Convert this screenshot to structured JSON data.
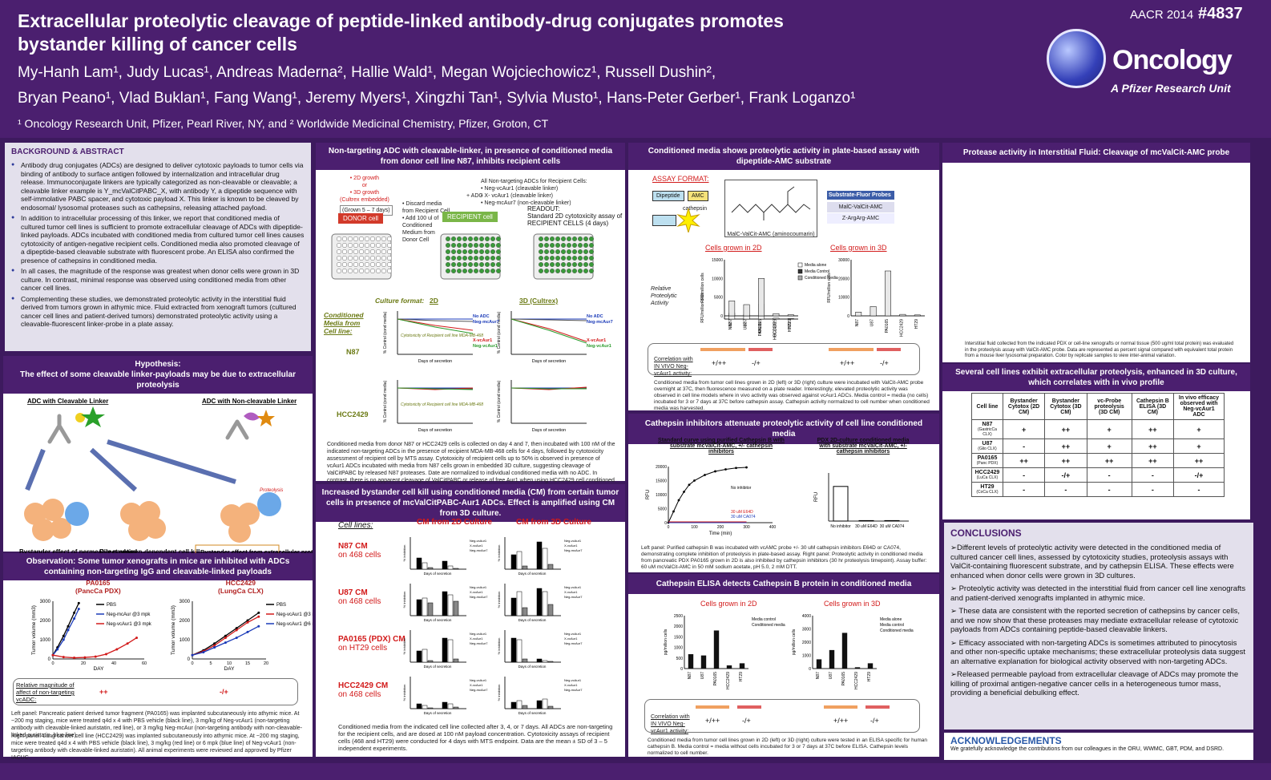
{
  "header": {
    "title_line1": "Extracellular proteolytic cleavage of peptide-linked antibody-drug conjugates promotes",
    "title_line2": "bystander killing of cancer cells",
    "authors_line1": "My-Hanh Lam¹, Judy Lucas¹, Andreas Maderna², Hallie Wald¹, Megan Wojciechowicz¹, Russell Dushin²,",
    "authors_line2": "Bryan Peano¹, Vlad Buklan¹, Fang Wang¹, Jeremy Myers¹, Xingzhi Tan¹, Sylvia Musto¹, Hans-Peter Gerber¹, Frank Loganzo¹",
    "affiliations": "¹ Oncology Research Unit,  Pfizer, Pearl River, NY, and  ² Worldwide Medicinal Chemistry, Pfizer, Groton, CT",
    "meeting": "AACR 2014",
    "poster_number": "#4837",
    "logo_text": "Oncology",
    "logo_sub": "A Pfizer Research Unit"
  },
  "background": {
    "heading": "BACKGROUND & ABSTRACT",
    "bullets": [
      "Antibody drug conjugates (ADCs) are designed to deliver cytotoxic payloads to tumor cells via binding of antibody to surface antigen followed by internalization and intracellular drug release. Immunoconjugate linkers are typically categorized as non-cleavable or cleavable; a cleavable linker example is Y_mcValCitPABC_X, with antibody Y, a dipeptide sequence with self-immolative PABC spacer, and cytotoxic payload X. This linker is known to be cleaved by endosomal/ lysosomal proteases such as cathepsins, releasing attached payload.",
      "In addition to intracellular processing of this linker, we report that conditioned media of cultured tumor cell lines is sufficient to promote extracellular cleavage of ADCs with dipeptide-linked payloads. ADCs incubated with conditioned media from cultured tumor cell lines causes cytotoxicity of antigen-negative recipient cells. Conditioned media also promoted cleavage of a dipeptide-based cleavable substrate with fluorescent probe. An ELISA also confirmed the presence of cathepsins in conditioned media.",
      "In all cases, the magnitude of the response was greatest when donor cells were grown in 3D culture. In contrast, minimal response was observed using conditioned media from other cancer cell lines.",
      "Complementing these studies, we demonstrated proteolytic activity in the interstitial fluid derived from tumors grown in athymic mice. Fluid extracted from xenograft tumors (cultured cancer cell lines and patient-derived tumors) demonstrated proteolytic activity using a cleavable-fluorescent linker-probe in a plate assay."
    ]
  },
  "hypothesis": {
    "heading": "Hypothesis:\nThe effect of some cleavable linker-payloads may be due to extracellular proteolysis",
    "left_label": "ADC with Cleavable Linker",
    "right_label": "ADC with Non-cleavable Linker",
    "proteolysis": "Proteolysis",
    "cap1": "Bystander effect of permeable payload",
    "cap2": "Direct antigen-dependent cell kill",
    "cap3": "Bystander effect from extracellular proteolysis"
  },
  "observation": {
    "heading": "Observation: Some tumor xenografts in mice are inhibited with ADCs containing non-targeting IgG and cleavable-linked payloads",
    "left_title": "PA0165",
    "left_sub": "(PancCa PDX)",
    "right_title": "HCC2429",
    "right_sub": "(LungCa CLX)",
    "ylabel": "Tumor volume (mm3)",
    "xlabel": "DAY",
    "legend_left": [
      "PBS",
      "Neg-mcAur @3 mpk",
      "Neg-vcAur1 @3 mpk"
    ],
    "legend_right": [
      "PBS",
      "Neg-vcAur1 @3 mpk",
      "Neg-vcAur1 @6 mpk"
    ],
    "mag_label": "Relative magnitude of affect of non-targeting vcADC:",
    "mag_left": "++",
    "mag_right": "-/+",
    "note1": "Left panel: Pancreatic patient derived tumor fragment (PA0165) was implanted subcutaneously into athymic mice. At ~200 mg staging, mice were treated q4d x 4 with PBS vehicle (black line), 3 mg/kg of Neg-vcAur1 (non-targeting antibody with cleavable-linked auristatin, red line), or 3 mg/kg Neg-mcAur (non-targeting antibody with non-cleavable-linked auristatin, blue line).",
    "note2": "Right panel: Lung cancer cell line (HCC2429) was implanted subcutaneously into athymic mice. At ~200 mg staging, mice were treated q4d x 4 with PBS vehicle (black line), 3 mg/kg (red line) or 6 mpk (blue line) of Neg-vcAur1 (non-targeting antibody with cleavable-linked auristatin). All animal experiments were reviewed and approved by Pfizer IACUC."
  },
  "nontargeting": {
    "heading": "Non-targeting ADC with cleavable-linker, in presence of conditioned media from donor cell line N87, inhibits recipient cells",
    "growth": "• 2D growth\nor\n• 3D growth\n(Cultrex embedded)",
    "grown": "(Grown 5 – 7 days)",
    "donor": "DONOR cell",
    "steps": "• Discard media from Recipient Cell\n• Add 100 ul of Conditioned Medium from Donor Cell",
    "recipient": "RECIPIENT cell",
    "adc": "+ ADC",
    "adc_list": "All Non-targeting ADCs for Recipient Cells:\n• Neg-vcAur1 (cleavable linker)\n• X- vcAur1 (cleavable linker)\n• Neg-mcAur7 (non-cleavable linker)",
    "readout": "READOUT:\nStandard 2D cytotoxicity assay of RECIPIENT CELLS (4 days)",
    "culture_format": "Culture format:",
    "fmt2d": "2D",
    "fmt3d": "3D (Cultrex)",
    "cm_label": "Conditioned Media from Cell line:",
    "n87": "N87",
    "hcc": "HCC2429",
    "xlab": "Days of secretion",
    "ylab": "% Control (cond media)",
    "legend_a": "No ADC\nNeg-mcAur7",
    "legend_b": "X-vcAur1\nNeg-vcAur1",
    "cyto_note": "Cytotoxicity of Recipient cell line MDA-MB-468",
    "caption": "Conditioned media from donor N87 or HCC2429 cells is collected on day 4 and 7, then incubated with 100 nM of the indicated non-targeting ADCs in the presence of recipient MDA-MB-468 cells for 4 days, followed by cytotoxicity assessment of recipient cell by MTS assay. Cytotoxicity of recipient cells up to 50% is observed in presence of vcAur1 ADCs incubated with media from N87 cells grown in embedded 3D culture, suggesting cleavage of ValCitPABC by released N87 proteases. Date are normalized to individual conditioned media with no ADC. In contrast, there is no apparent cleavage of ValCitPABC or release of free Aur1 when using HCC2429 cell conditioned media (grown 2D or 3D, lower panels)."
  },
  "bystander": {
    "heading": "Increased bystander cell kill using conditioned media (CM) from certain tumor cells in presence of mcValCitPABC-Aur1 ADCs. Effect is amplified using CM from 3D culture.",
    "cell_lines": "Cell lines:",
    "cm2d": "CM from 2D Culture",
    "cm3d": "CM from 3D Culture",
    "rows": [
      {
        "name": "N87 CM",
        "sub": "on 468 cells"
      },
      {
        "name": "U87 CM",
        "sub": "on 468 cells"
      },
      {
        "name": "PA0165 (PDX) CM",
        "sub": "on HT29 cells"
      },
      {
        "name": "HCC2429 CM",
        "sub": "on 468 cells"
      }
    ],
    "xlab": "Days of secretion",
    "ylab": "% Inhibition",
    "legend": [
      "Neg-vcAur1",
      "X-vcAur1",
      "Neg-mcAur7"
    ],
    "caption": "Conditioned media from the indicated cell line collected after 3, 4, or 7 days. All ADCs are non-targeting for the recipient cells, and are dosed at 100 nM payload concentration. Cytotoxicity assays of recipient cells (468 and HT29) were conducted for 4 days with MTS endpoint. Data are the mean ± SD of 3 – 5 independent experiments."
  },
  "plate": {
    "heading": "Conditioned media shows proteolytic activity in plate-based assay with dipeptide-AMC substrate",
    "assay_format": "ASSAY FORMAT:",
    "dipeptide": "Dipeptide",
    "amc": "AMC",
    "cathepsin": "cathepsin",
    "structure_label": "MalC-ValCit-AMC (aminocoumarin)",
    "probes_head": "Substrate-Fluor Probes",
    "probe1": "MalC-ValCit-AMC",
    "probe2": "Z-ArgArg-AMC",
    "cells2d": "Cells grown in 2D",
    "cells3d": "Cells grown in 3D",
    "rel_act": "Relative Proteolytic Activity",
    "ylab": "RFU/million cells",
    "legend": [
      "Media alone",
      "Media Control",
      "Conditioned media"
    ],
    "cats": [
      "N87",
      "U87",
      "PA0165",
      "HCC2429",
      "HT29"
    ],
    "corr_label": "Correlation with IN VIVO Neg-vcAur1 activity:",
    "corr_a": "+/++",
    "corr_b": "-/+",
    "caption": "Conditioned media from tumor cell lines grown in 2D (left) or 3D (right) culture were incubated with ValCit-AMC probe overnight at 37C, then fluorescence measured on a plate reader. Interestingly, elevated proteolytic activity was observed in cell line models where in vivo activity was observed against vcAur1 ADCs. Media control = media (no cells) incubated for 3 or 7 days at 37C before cathepsin assay. Cathepsin activity normalized to cell number when conditioned media was harvested."
  },
  "inhibitors": {
    "heading": "Cathepsin inhibitors attenuate proteolytic activity of cell line conditioned media",
    "left_title": "Standard curve using purified Cathepsin B with substrate mcValCit-AMC, +/- cathepsin inhibitors",
    "right_title": "PDX 2D-culture conditioned media with substrate mcValCit-AMC, +/- cathepsin inhibitors",
    "xlab": "Time (min)",
    "ylab": "RFU",
    "legend": [
      "No inhibitor",
      "30 uM E64D",
      "30 uM CA074"
    ],
    "cats": [
      "No inhibitor",
      "30 uM E64D",
      "30 uM CA074"
    ],
    "caption": "Left panel: Purified cathepsin B was incubated with vcAMC probe +/- 30 uM cathepsin inhibitors E64D or CA074, demonstrating complete inhibition of proteolysis in plate-based assay. Right panel: Proteolytic activity in conditioned media from pancreatic PDX PA0165 grown in 2D is also inhibited by cathepsin inhibitors (30 hr proteolysis timepoint). Assay buffer: 60 uM mcValCit-AMC in 50 mM sodium acetate, pH 5.0, 2 mM DTT."
  },
  "elisa": {
    "heading": "Cathepsin ELISA detects Cathepsin B protein in conditioned media",
    "cells2d": "Cells grown in 2D",
    "cells3d": "Cells grown in 3D",
    "ylab": "pg/million cells",
    "legend2d": [
      "Media control",
      "Conditioned media"
    ],
    "legend3d": [
      "Media alone",
      "Media control",
      "Conditioned media"
    ],
    "cats": [
      "N87",
      "U87",
      "PA0165",
      "HCC2429",
      "HT29"
    ],
    "corr_label": "Correlation with IN VIVO Neg-vcAur1 activity:",
    "corr_a": "+/++",
    "corr_b": "-/+",
    "caption": "Conditioned media from tumor cell lines grown in 2D (left) or 3D (right) culture were tested in an ELISA specific for human cathepsin B. Media control = media without cells incubated for 3 or 7 days at 37C before ELISA. Cathepsin levels normalized to cell number."
  },
  "interstitial": {
    "heading": "Protease activity in Interstitial Fluid: Cleavage of mcValCit-AMC probe",
    "caption": "Interstitial fluid collected from the indicated PDX or cell-line xenografts or normal tissue (500 ug/ml total protein) was evaluated in the proteolysis assay with ValCit-AMC probe. Data are represented as percent signal compared with equivalent total protein from a mouse liver lysosomal preparation. Color by replicate samples to view inter-animal variation."
  },
  "cellline": {
    "heading": "Several cell lines exhibit extracellular proteolysis, enhanced in 3D culture, which correlates with in vivo profile",
    "headers": [
      "Cell line",
      "Bystander Cytotox (2D CM)",
      "Bystander Cytotox (3D CM)",
      "vc-Probe proteolysis (3D CM)",
      "Cathepsin B ELISA (3D CM)",
      "In vivo efficacy observed with Neg-vcAur1 ADC"
    ],
    "rows": [
      {
        "name": "N87",
        "sub": "(GastricCa CLX)",
        "vals": [
          "+",
          "++",
          "+",
          "++",
          "+"
        ]
      },
      {
        "name": "U87",
        "sub": "(Glio CLX)",
        "vals": [
          "-",
          "++",
          "+",
          "++",
          "+"
        ]
      },
      {
        "name": "PA0165",
        "sub": "(Panc PDX)",
        "vals": [
          "++",
          "++",
          "++",
          "++",
          "++"
        ]
      },
      {
        "name": "HCC2429",
        "sub": "(LuCa CLX)",
        "vals": [
          "-",
          "-/+",
          "-",
          "-",
          "-/+"
        ]
      },
      {
        "name": "HT29",
        "sub": "(CoCa CLX)",
        "vals": [
          "-",
          "-",
          "-",
          "-",
          "-"
        ]
      }
    ]
  },
  "conclusions": {
    "heading": "CONCLUSIONS",
    "items": [
      "➢Different levels of proteolytic activity were detected in the conditioned media of cultured cancer cell lines, assessed by cytotoxicity studies, proteolysis assays with ValCit-containing fluorescent substrate, and by cathepsin ELISA. These effects were enhanced when donor cells were grown in 3D cultures.",
      "➢ Proteolytic activity was detected in the interstitial fluid from cancer cell line xenografts and patient-derived xenografts implanted in athymic mice.",
      "➢ These data are consistent with the reported secretion of cathepsins by cancer cells, and we now show that these proteases may mediate extracellular release of cytotoxic payloads from ADCs containing peptide-based cleavable linkers.",
      "➢ Efficacy associated with non-targeting ADCs is sometimes attributed to pinocytosis and other non-specific uptake mechanisms; these extracellular proteolysis data suggest an alternative explanation for biological activity observed with non-targeting ADCs.",
      "➢Released permeable payload from extracellular cleavage of ADCs may promote the killing of proximal antigen-negative cancer cells in a heterogeneous tumor mass, providing a beneficial debulking effect."
    ]
  },
  "ack": {
    "heading": "ACKNOWLEDGEMENTS",
    "text": "We gratefully acknowledge the contributions from our colleagues in the ORU, WWMC, GBT, PDM, and DSRD."
  },
  "chart_data": [
    {
      "type": "line",
      "title": "PA0165 (PancCa PDX)",
      "xlabel": "DAY",
      "ylabel": "Tumor volume (mm3)",
      "ylim": [
        0,
        3000
      ],
      "xlim": [
        0,
        60
      ],
      "series": [
        {
          "name": "PBS",
          "x": [
            0,
            3,
            7,
            10,
            14,
            17
          ],
          "values": [
            200,
            600,
            1200,
            1700,
            2400,
            2900
          ]
        },
        {
          "name": "Neg-mcAur @3 mpk",
          "x": [
            0,
            3,
            7,
            10,
            14,
            17
          ],
          "values": [
            200,
            500,
            1000,
            1500,
            2100,
            2600
          ]
        },
        {
          "name": "Neg-vcAur1 @3 mpk",
          "x": [
            0,
            7,
            14,
            21,
            28,
            35,
            42,
            49,
            55
          ],
          "values": [
            200,
            100,
            60,
            80,
            120,
            250,
            500,
            800,
            1100
          ]
        }
      ]
    },
    {
      "type": "line",
      "title": "HCC2429 (LungCa CLX)",
      "xlabel": "DAY",
      "ylabel": "Tumor volume (mm3)",
      "ylim": [
        0,
        3000
      ],
      "xlim": [
        0,
        20
      ],
      "series": [
        {
          "name": "PBS",
          "x": [
            0,
            3,
            6,
            9,
            12,
            15,
            18
          ],
          "values": [
            200,
            450,
            800,
            1200,
            1600,
            2000,
            2400
          ]
        },
        {
          "name": "Neg-vcAur1 @3 mpk",
          "x": [
            0,
            3,
            6,
            9,
            12,
            15,
            18
          ],
          "values": [
            200,
            400,
            700,
            1100,
            1500,
            1900,
            2200
          ]
        },
        {
          "name": "Neg-vcAur1 @6 mpk",
          "x": [
            0,
            3,
            6,
            9,
            12,
            15,
            18
          ],
          "values": [
            200,
            350,
            600,
            850,
            1100,
            1400,
            1700
          ]
        }
      ]
    },
    {
      "type": "bar",
      "title": "Cells grown in 2D",
      "ylabel": "RFU/million cells",
      "ylim": [
        0,
        15000
      ],
      "categories": [
        "N87",
        "U87",
        "PA0165",
        "HCC2429",
        "HT29"
      ],
      "values": [
        4000,
        3000,
        10000,
        600,
        300
      ]
    },
    {
      "type": "bar",
      "title": "Cells grown in 3D",
      "ylabel": "RFU/million cells",
      "ylim": [
        0,
        30000
      ],
      "categories": [
        "N87",
        "U87",
        "PA0165",
        "HCC2429",
        "HT29"
      ],
      "values": [
        2000,
        5000,
        24000,
        800,
        500
      ]
    },
    {
      "type": "bar",
      "title": "Cells grown in 2D (ELISA)",
      "ylabel": "pg/million cells",
      "ylim": [
        0,
        2500
      ],
      "categories": [
        "N87",
        "U87",
        "PA0165",
        "HCC2429",
        "HT29"
      ],
      "values": [
        680,
        620,
        1800,
        150,
        250
      ]
    },
    {
      "type": "bar",
      "title": "Cells grown in 3D (ELISA)",
      "ylabel": "pg/million cells",
      "ylim": [
        0,
        4000
      ],
      "categories": [
        "N87",
        "U87",
        "PA0165",
        "HCC2429",
        "HT29"
      ],
      "values": [
        700,
        1400,
        2700,
        100,
        400
      ]
    },
    {
      "type": "bar",
      "title": "PDX 2D-culture conditioned media",
      "ylabel": "RFU",
      "ylim": [
        0,
        1000
      ],
      "categories": [
        "No inhibitor",
        "30 uM E64D",
        "30 uM CA074"
      ],
      "values": [
        720,
        10,
        10
      ]
    }
  ]
}
